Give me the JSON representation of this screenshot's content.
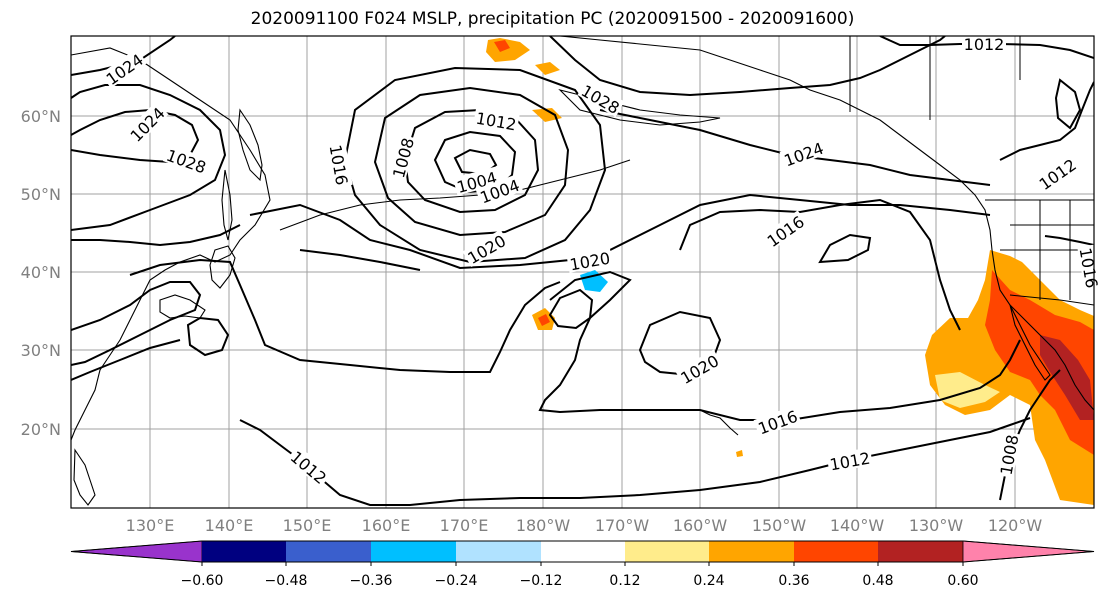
{
  "title": "2020091100 F024 MSLP, precipitation PC (2020091500 - 2020091600)",
  "lon_labels": [
    "130°E",
    "140°E",
    "150°E",
    "160°E",
    "170°E",
    "180°W",
    "170°W",
    "160°W",
    "150°W",
    "140°W",
    "130°W",
    "120°W"
  ],
  "lat_labels": [
    "60°N",
    "50°N",
    "40°N",
    "30°N",
    "20°N"
  ],
  "isobar_labels": [
    "1024",
    "1024",
    "1028",
    "1012",
    "1016",
    "1008",
    "1004",
    "1004",
    "1028",
    "1012",
    "1024",
    "1020",
    "1020",
    "1016",
    "1020",
    "1016",
    "1012",
    "1012",
    "1008",
    "1012",
    "1016"
  ],
  "colorbar": {
    "colors": [
      "#9933cc",
      "#000080",
      "#3a5fcd",
      "#00bfff",
      "#b0e2ff",
      "#ffffff",
      "#ffec8b",
      "#ffa500",
      "#ff4500",
      "#b22222",
      "#ff82ab"
    ],
    "tick_labels": [
      "−0.60",
      "−0.48",
      "−0.36",
      "−0.24",
      "−0.12",
      "0.12",
      "0.24",
      "0.36",
      "0.48",
      "0.60"
    ]
  }
}
